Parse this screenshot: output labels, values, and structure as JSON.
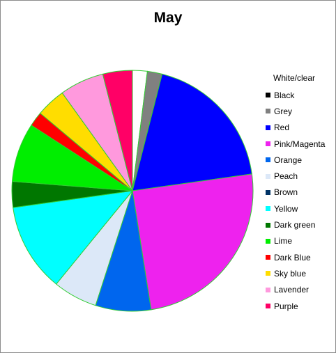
{
  "chart_data": {
    "type": "pie",
    "title": "May",
    "legend_position": "right",
    "categories": [
      "White/clear",
      "Black",
      "Grey",
      "Red",
      "Pink/Magenta",
      "Orange",
      "Peach",
      "Brown",
      "Yellow",
      "Dark green",
      "Lime",
      "Dark Blue",
      "Sky blue",
      "Lavender",
      "Purple"
    ],
    "values": [
      2.0,
      0.0,
      2.0,
      19.0,
      25.0,
      7.5,
      6.0,
      0.0,
      12.0,
      3.5,
      8.0,
      2.0,
      4.0,
      6.0,
      4.0
    ],
    "colors": [
      "#ffffff",
      "#000000",
      "#808080",
      "#0000ff",
      "#ee22ee",
      "#0066ee",
      "#dce8f8",
      "#003366",
      "#00ffff",
      "#007700",
      "#00ee00",
      "#ff0000",
      "#ffdd00",
      "#ff99dd",
      "#ff0066"
    ],
    "slice_border_color": "#33cc33"
  }
}
